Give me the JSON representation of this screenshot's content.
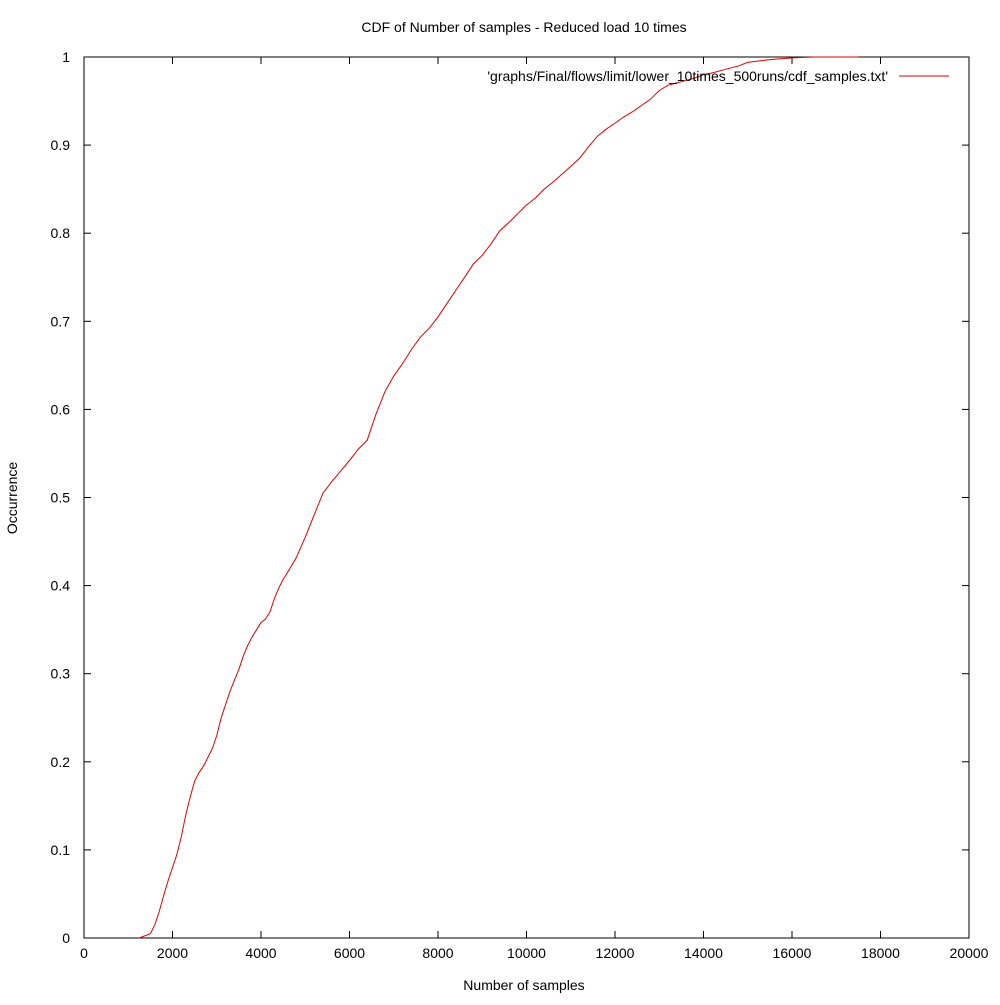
{
  "chart_data": {
    "type": "line",
    "title": "CDF of Number of samples - Reduced load 10 times",
    "xlabel": "Number of samples",
    "ylabel": "Occurrence",
    "xlim": [
      0,
      20000
    ],
    "ylim": [
      0,
      1
    ],
    "xticks": [
      0,
      2000,
      4000,
      6000,
      8000,
      10000,
      12000,
      14000,
      16000,
      18000,
      20000
    ],
    "xtick_labels": [
      "0",
      "2000",
      "4000",
      "6000",
      "8000",
      "10000",
      "12000",
      "14000",
      "16000",
      "18000",
      "20000"
    ],
    "yticks": [
      0,
      0.1,
      0.2,
      0.3,
      0.4,
      0.5,
      0.6,
      0.7,
      0.8,
      0.9,
      1
    ],
    "ytick_labels": [
      "0",
      "0.1",
      "0.2",
      "0.3",
      "0.4",
      "0.5",
      "0.6",
      "0.7",
      "0.8",
      "0.9",
      "1"
    ],
    "grid": false,
    "legend_position": "top-right",
    "series": [
      {
        "name": "'graphs/Final/flows/limit/lower_10times_500runs/cdf_samples.txt'",
        "color": "#e00000",
        "x": [
          1250,
          1500,
          1600,
          1700,
          1800,
          1900,
          2000,
          2100,
          2200,
          2300,
          2400,
          2500,
          2600,
          2700,
          2800,
          2900,
          3000,
          3100,
          3200,
          3300,
          3400,
          3500,
          3600,
          3700,
          3800,
          3900,
          4000,
          4100,
          4200,
          4300,
          4400,
          4500,
          4600,
          4800,
          5000,
          5200,
          5400,
          5600,
          5800,
          6000,
          6200,
          6400,
          6600,
          6800,
          7000,
          7200,
          7400,
          7600,
          7800,
          8000,
          8200,
          8400,
          8600,
          8800,
          9000,
          9200,
          9400,
          9600,
          9800,
          10000,
          10200,
          10400,
          10600,
          10800,
          11000,
          11200,
          11400,
          11600,
          11800,
          12000,
          12200,
          12400,
          12600,
          12800,
          13000,
          13200,
          13500,
          13800,
          14000,
          14200,
          14500,
          14800,
          15000,
          15500,
          16000,
          16500,
          17000,
          17500
        ],
        "y": [
          0,
          0.005,
          0.015,
          0.03,
          0.048,
          0.065,
          0.08,
          0.095,
          0.115,
          0.14,
          0.16,
          0.178,
          0.188,
          0.195,
          0.205,
          0.215,
          0.23,
          0.25,
          0.265,
          0.28,
          0.293,
          0.305,
          0.32,
          0.332,
          0.342,
          0.35,
          0.358,
          0.362,
          0.37,
          0.385,
          0.397,
          0.407,
          0.415,
          0.432,
          0.455,
          0.48,
          0.505,
          0.518,
          0.53,
          0.542,
          0.555,
          0.565,
          0.595,
          0.62,
          0.638,
          0.652,
          0.668,
          0.682,
          0.692,
          0.705,
          0.72,
          0.735,
          0.75,
          0.765,
          0.775,
          0.788,
          0.803,
          0.812,
          0.822,
          0.832,
          0.84,
          0.85,
          0.858,
          0.867,
          0.876,
          0.885,
          0.898,
          0.91,
          0.918,
          0.925,
          0.932,
          0.938,
          0.945,
          0.952,
          0.962,
          0.968,
          0.972,
          0.976,
          0.98,
          0.982,
          0.986,
          0.99,
          0.994,
          0.997,
          0.999,
          1,
          1,
          1
        ]
      }
    ]
  }
}
